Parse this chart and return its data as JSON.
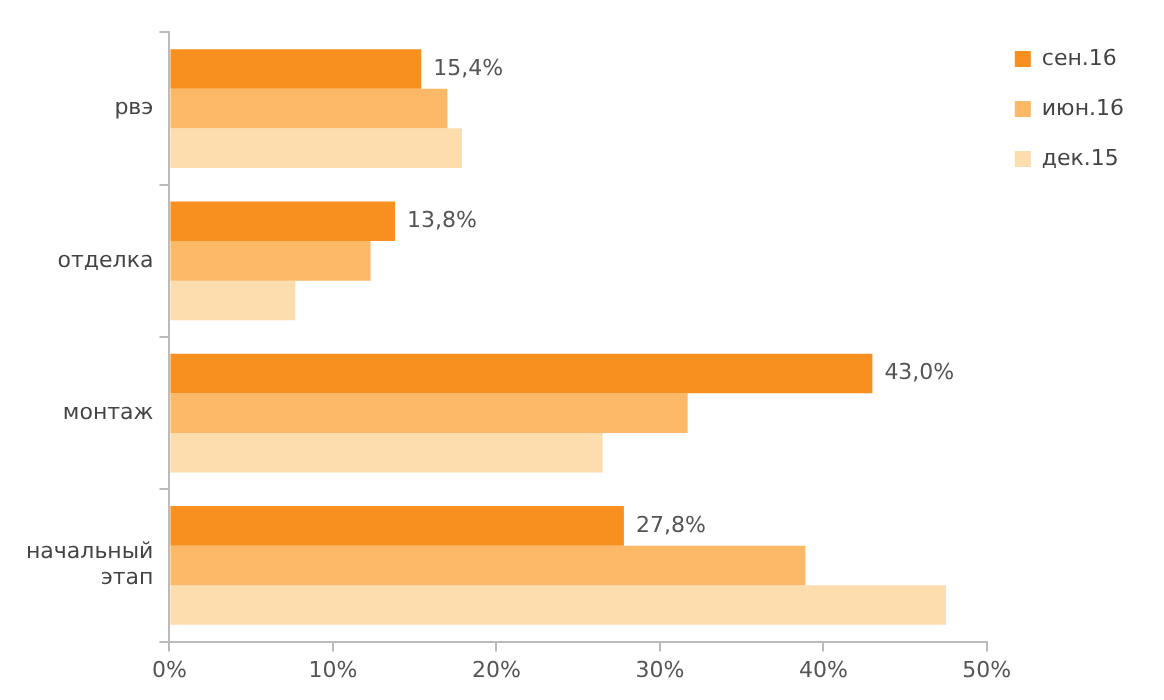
{
  "chart_data": {
    "type": "bar",
    "orientation": "horizontal",
    "categories": [
      "рвэ",
      "отделка",
      "монтаж",
      "начальный этап"
    ],
    "series": [
      {
        "name": "сен.16",
        "color": "#f7901e",
        "values": [
          15.4,
          13.8,
          43.0,
          27.8
        ],
        "value_labels": [
          "15,4%",
          "13,8%",
          "43,0%",
          "27,8%"
        ]
      },
      {
        "name": "июн.16",
        "color": "#fbb867",
        "values": [
          17.0,
          12.3,
          31.7,
          38.9
        ]
      },
      {
        "name": "дек.15",
        "color": "#fddcae",
        "values": [
          17.9,
          7.7,
          26.5,
          47.5
        ]
      }
    ],
    "xlim": [
      0,
      50
    ],
    "xticks": [
      {
        "value": 0,
        "label": "0%"
      },
      {
        "value": 10,
        "label": "10%"
      },
      {
        "value": 20,
        "label": "20%"
      },
      {
        "value": 30,
        "label": "30%"
      },
      {
        "value": 40,
        "label": "40%"
      },
      {
        "value": 50,
        "label": "50%"
      }
    ],
    "grid": false,
    "legend": "right"
  }
}
